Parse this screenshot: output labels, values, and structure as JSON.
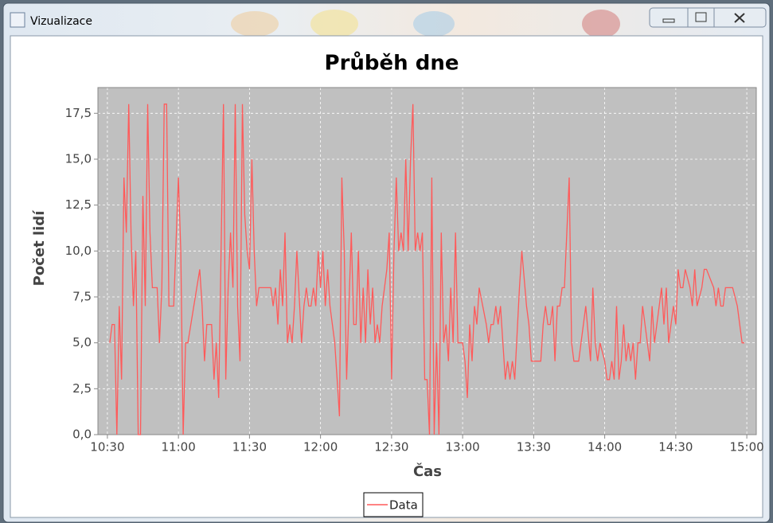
{
  "window": {
    "title": "Vizualizace"
  },
  "chart_data": {
    "type": "line",
    "title": "Průběh dne",
    "xlabel": "Čas",
    "ylabel": "Počet lidí",
    "x": [
      "10:31",
      "10:32",
      "10:33",
      "10:34",
      "10:35",
      "10:36",
      "10:37",
      "10:38",
      "10:39",
      "10:40",
      "10:41",
      "10:42",
      "10:43",
      "10:44",
      "10:45",
      "10:46",
      "10:47",
      "10:48",
      "10:49",
      "10:51",
      "10:52",
      "10:53",
      "10:54",
      "10:55",
      "10:56",
      "10:58",
      "11:00",
      "11:01",
      "11:02",
      "11:03",
      "11:04",
      "11:09",
      "11:10",
      "11:11",
      "11:12",
      "11:14",
      "11:15",
      "11:16",
      "11:17",
      "11:18",
      "11:19",
      "11:20",
      "11:21",
      "11:22",
      "11:23",
      "11:24",
      "11:25",
      "11:26",
      "11:27",
      "11:28",
      "11:29",
      "11:30",
      "11:31",
      "11:32",
      "11:33",
      "11:34",
      "11:37",
      "11:39",
      "11:40",
      "11:41",
      "11:42",
      "11:43",
      "11:44",
      "11:45",
      "11:46",
      "11:47",
      "11:48",
      "11:49",
      "11:50",
      "11:52",
      "11:53",
      "11:54",
      "11:55",
      "11:56",
      "11:57",
      "11:58",
      "11:59",
      "12:00",
      "12:01",
      "12:02",
      "12:03",
      "12:04",
      "12:06",
      "12:07",
      "12:08",
      "12:09",
      "12:10",
      "12:11",
      "12:12",
      "12:13",
      "12:14",
      "12:15",
      "12:16",
      "12:17",
      "12:18",
      "12:19",
      "12:20",
      "12:21",
      "12:22",
      "12:23",
      "12:24",
      "12:25",
      "12:26",
      "12:27",
      "12:28",
      "12:29",
      "12:30",
      "12:31",
      "12:32",
      "12:33",
      "12:34",
      "12:35",
      "12:36",
      "12:37",
      "12:38",
      "12:39",
      "12:40",
      "12:41",
      "12:42",
      "12:43",
      "12:44",
      "12:45",
      "12:46",
      "12:47",
      "12:48",
      "12:49",
      "12:50",
      "12:51",
      "12:52",
      "12:53",
      "12:54",
      "12:55",
      "12:56",
      "12:57",
      "12:58",
      "13:00",
      "13:01",
      "13:02",
      "13:03",
      "13:04",
      "13:05",
      "13:06",
      "13:07",
      "13:10",
      "13:11",
      "13:12",
      "13:13",
      "13:14",
      "13:15",
      "13:16",
      "13:17",
      "13:18",
      "13:19",
      "13:20",
      "13:21",
      "13:22",
      "13:24",
      "13:25",
      "13:27",
      "13:28",
      "13:29",
      "13:33",
      "13:34",
      "13:35",
      "13:36",
      "13:37",
      "13:38",
      "13:39",
      "13:40",
      "13:41",
      "13:42",
      "13:43",
      "13:45",
      "13:46",
      "13:47",
      "13:48",
      "13:49",
      "13:52",
      "13:54",
      "13:55",
      "13:56",
      "13:57",
      "13:58",
      "14:00",
      "14:01",
      "14:02",
      "14:03",
      "14:04",
      "14:05",
      "14:06",
      "14:07",
      "14:08",
      "14:09",
      "14:10",
      "14:11",
      "14:12",
      "14:13",
      "14:14",
      "14:15",
      "14:16",
      "14:17",
      "14:18",
      "14:19",
      "14:20",
      "14:21",
      "14:22",
      "14:24",
      "14:25",
      "14:26",
      "14:27",
      "14:28",
      "14:29",
      "14:30",
      "14:31",
      "14:32",
      "14:33",
      "14:34",
      "14:36",
      "14:37",
      "14:38",
      "14:39",
      "14:41",
      "14:42",
      "14:43",
      "14:46",
      "14:47",
      "14:48",
      "14:49",
      "14:50",
      "14:51",
      "14:53",
      "14:54",
      "14:56",
      "14:58",
      "14:59"
    ],
    "series": [
      {
        "name": "Data",
        "color": "#ff5a5a",
        "values": [
          5,
          6,
          6,
          0,
          7,
          3,
          14,
          11,
          18,
          11,
          7,
          10,
          0,
          0,
          13,
          7,
          18,
          11,
          8,
          8,
          5,
          8,
          18,
          18,
          7,
          7,
          14,
          10,
          0,
          5,
          5,
          9,
          7,
          4,
          6,
          6,
          3,
          5,
          2,
          10,
          18,
          3,
          8,
          11,
          8,
          18,
          7,
          4,
          18,
          12,
          10,
          9,
          15,
          10,
          7,
          8,
          8,
          8,
          7,
          8,
          6,
          9,
          7,
          11,
          5,
          6,
          5,
          7,
          10,
          5,
          7,
          8,
          7,
          7,
          8,
          7,
          10,
          8,
          10,
          7,
          9,
          7,
          5,
          3,
          1,
          14,
          10,
          3,
          7,
          11,
          6,
          6,
          10,
          5,
          8,
          5,
          9,
          6,
          8,
          5,
          6,
          5,
          7,
          8,
          9,
          11,
          3,
          10,
          14,
          10,
          11,
          10,
          15,
          10,
          15,
          18,
          10,
          11,
          10,
          11,
          3,
          3,
          0,
          14,
          0,
          5,
          0,
          11,
          5,
          6,
          4,
          8,
          5,
          11,
          5,
          5,
          4,
          2,
          6,
          4,
          7,
          6,
          8,
          6,
          5,
          6,
          6,
          7,
          6,
          7,
          5,
          3,
          4,
          3,
          4,
          3,
          8,
          10,
          7,
          6,
          4,
          4,
          6,
          7,
          6,
          6,
          7,
          4,
          7,
          7,
          8,
          8,
          14,
          5,
          4,
          4,
          4,
          7,
          4,
          8,
          5,
          4,
          5,
          4,
          3,
          3,
          4,
          3,
          7,
          3,
          4,
          6,
          4,
          5,
          4,
          5,
          3,
          5,
          5,
          7,
          6,
          5,
          4,
          7,
          5,
          6,
          8,
          6,
          8,
          5,
          6,
          7,
          6,
          9,
          8,
          8,
          9,
          8,
          7,
          9,
          7,
          8,
          9,
          9,
          8,
          7,
          8,
          7,
          7,
          8,
          8,
          8,
          7,
          5,
          5
        ]
      }
    ],
    "xlim": [
      "10:26",
      "15:04"
    ],
    "xticks": [
      "10:30",
      "11:00",
      "11:30",
      "12:00",
      "12:30",
      "13:00",
      "13:30",
      "14:00",
      "14:30",
      "15:00"
    ],
    "ylim": [
      0,
      18.9
    ],
    "yticks": [
      {
        "value": 0,
        "label": "0,0"
      },
      {
        "value": 2.5,
        "label": "2,5"
      },
      {
        "value": 5,
        "label": "5,0"
      },
      {
        "value": 7.5,
        "label": "7,5"
      },
      {
        "value": 10,
        "label": "10,0"
      },
      {
        "value": 12.5,
        "label": "12,5"
      },
      {
        "value": 15,
        "label": "15,0"
      },
      {
        "value": 17.5,
        "label": "17,5"
      }
    ],
    "grid": true,
    "legend": "bottom"
  }
}
